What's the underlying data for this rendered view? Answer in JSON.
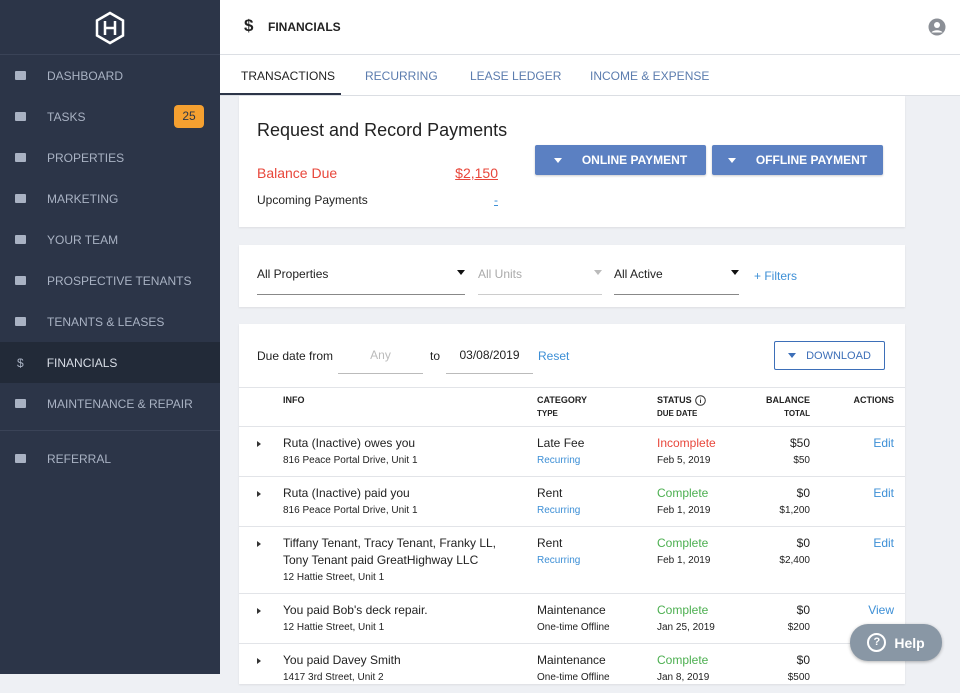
{
  "sidebar": {
    "nav": [
      {
        "label": "DASHBOARD"
      },
      {
        "label": "TASKS",
        "badge": "25"
      },
      {
        "label": "PROPERTIES"
      },
      {
        "label": "MARKETING"
      },
      {
        "label": "YOUR TEAM"
      },
      {
        "label": "PROSPECTIVE TENANTS"
      },
      {
        "label": "TENANTS & LEASES"
      },
      {
        "label": "FINANCIALS",
        "icon": "$",
        "active": true
      },
      {
        "label": "MAINTENANCE & REPAIR"
      }
    ],
    "secondary": [
      {
        "label": "REFERRAL"
      }
    ]
  },
  "header": {
    "icon": "$",
    "title": "FINANCIALS"
  },
  "tabs": [
    {
      "label": "TRANSACTIONS",
      "active": true
    },
    {
      "label": "RECURRING"
    },
    {
      "label": "LEASE LEDGER"
    },
    {
      "label": "INCOME & EXPENSE"
    }
  ],
  "payments": {
    "title": "Request and Record Payments",
    "balance_label": "Balance Due",
    "balance_value": "$2,150",
    "upcoming_label": "Upcoming Payments",
    "upcoming_value": "-",
    "buttons": [
      "ONLINE PAYMENT",
      "OFFLINE PAYMENT"
    ]
  },
  "filters": {
    "properties": "All Properties",
    "units": "All Units",
    "status": "All Active",
    "more": "+ Filters"
  },
  "transactions": {
    "due_from_label": "Due date from",
    "due_from_placeholder": "Any",
    "to_label": "to",
    "due_to": "03/08/2019",
    "reset": "Reset",
    "download": "DOWNLOAD",
    "columns": [
      {
        "title": "INFO"
      },
      {
        "title": "CATEGORY",
        "subtitle": "TYPE"
      },
      {
        "title": "STATUS",
        "subtitle": "DUE DATE"
      },
      {
        "title": "BALANCE",
        "subtitle": "TOTAL"
      },
      {
        "title": "ACTIONS"
      }
    ],
    "rows": [
      {
        "info": "Ruta (Inactive) owes you",
        "address": "816 Peace Portal Drive, Unit 1",
        "category": "Late Fee",
        "type": "Recurring",
        "type_style": "link",
        "status": "Incomplete",
        "status_color": "#e8473b",
        "due_date": "Feb 5, 2019",
        "balance": "$50",
        "total": "$50",
        "action": "Edit"
      },
      {
        "info": "Ruta (Inactive) paid you",
        "address": "816 Peace Portal Drive, Unit 1",
        "category": "Rent",
        "type": "Recurring",
        "type_style": "link",
        "status": "Complete",
        "status_color": "#4caf50",
        "due_date": "Feb 1, 2019",
        "balance": "$0",
        "total": "$1,200",
        "action": "Edit"
      },
      {
        "info": "Tiffany Tenant, Tracy Tenant, Franky LL, Tony Tenant paid GreatHighway LLC",
        "address": "12 Hattie Street, Unit 1",
        "category": "Rent",
        "type": "Recurring",
        "type_style": "link",
        "status": "Complete",
        "status_color": "#4caf50",
        "due_date": "Feb 1, 2019",
        "balance": "$0",
        "total": "$2,400",
        "action": "Edit"
      },
      {
        "info": "You paid Bob's deck repair.",
        "address": "12 Hattie Street, Unit 1",
        "category": "Maintenance",
        "type": "One-time Offline",
        "type_style": "plain",
        "status": "Complete",
        "status_color": "#4caf50",
        "due_date": "Jan 25, 2019",
        "balance": "$0",
        "total": "$200",
        "action": "View"
      },
      {
        "info": "You paid Davey Smith",
        "address": "1417 3rd Street, Unit 2",
        "category": "Maintenance",
        "type": "One-time Offline",
        "type_style": "plain",
        "status": "Complete",
        "status_color": "#4caf50",
        "due_date": "Jan 8, 2019",
        "balance": "$0",
        "total": "$500"
      }
    ]
  },
  "help": {
    "icon": "?",
    "label": "Help"
  }
}
